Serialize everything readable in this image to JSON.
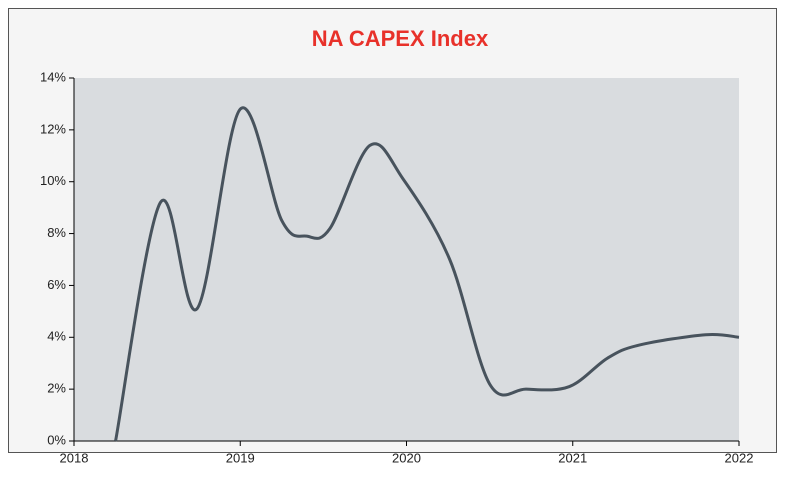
{
  "chart_data": {
    "type": "line",
    "title": "NA CAPEX Index",
    "title_color": "#e8312a",
    "x": [
      2018.25,
      2018.52,
      2018.74,
      2019.0,
      2019.25,
      2019.4,
      2019.54,
      2019.78,
      2019.98,
      2020.26,
      2020.5,
      2020.72,
      2020.98,
      2021.21,
      2021.4,
      2021.8,
      2022.0
    ],
    "series": [
      {
        "name": "NA CAPEX Index",
        "color": "#48535d",
        "values": [
          0,
          9.2,
          5.1,
          12.8,
          8.5,
          7.9,
          8.2,
          11.4,
          10.1,
          7.0,
          2.2,
          2.0,
          2.1,
          3.2,
          3.7,
          4.1,
          4.0
        ]
      }
    ],
    "xlim": [
      2018,
      2022
    ],
    "xticks": [
      2018,
      2019,
      2020,
      2021,
      2022
    ],
    "ylim": [
      0,
      14
    ],
    "yticks": [
      {
        "value": 0,
        "label": "0%"
      },
      {
        "value": 2,
        "label": "2%"
      },
      {
        "value": 4,
        "label": "4%"
      },
      {
        "value": 6,
        "label": "6%"
      },
      {
        "value": 8,
        "label": "8%"
      },
      {
        "value": 10,
        "label": "10%"
      },
      {
        "value": 12,
        "label": "12%"
      },
      {
        "value": 14,
        "label": "14%"
      }
    ],
    "plot_background": "#d9dcdf"
  }
}
